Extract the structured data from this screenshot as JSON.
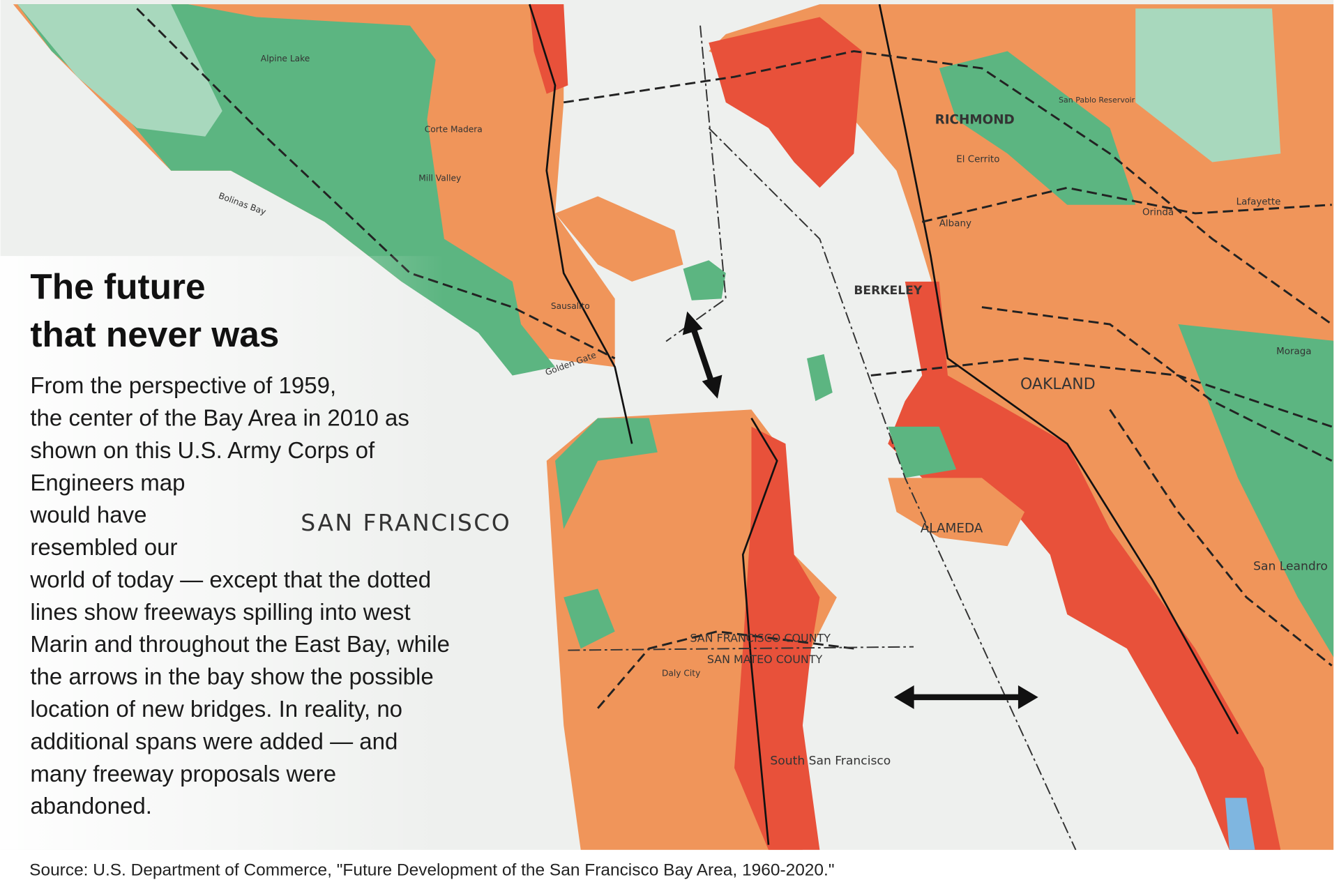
{
  "title": [
    "The future",
    "that never was"
  ],
  "body_lines": [
    "From the perspective of 1959,",
    "the center of the Bay Area in 2010 as",
    "shown on this U.S. Army Corps of",
    "Engineers map",
    "would have",
    "resembled our",
    "world of today — except that the dotted",
    "lines show freeways spilling into west",
    "Marin and throughout the East Bay, while",
    "the arrows in the bay show the possible",
    "location of new bridges. In reality, no",
    "additional spans were added — and",
    "many freeway proposals were",
    "abandoned."
  ],
  "map": {
    "labels": [
      "SAN FRANCISCO",
      "RICHMOND",
      "BERKELEY",
      "OAKLAND",
      "ALAMEDA",
      "SAN FRANCISCO COUNTY",
      "SAN MATEO COUNTY",
      "South San Francisco",
      "San Leandro",
      "Orinda",
      "Lafayette",
      "Moraga",
      "El Cerrito",
      "Albany",
      "Daly City",
      "Corte Madera",
      "Sausalito",
      "Mill Valley",
      "Alpine Lake",
      "Bolinas Bay",
      "Golden Gate",
      "San Pablo Reservoir"
    ]
  },
  "source": "Source: U.S. Department of Commerce, \"Future Development of the San Francisco Bay Area, 1960-2020.\""
}
